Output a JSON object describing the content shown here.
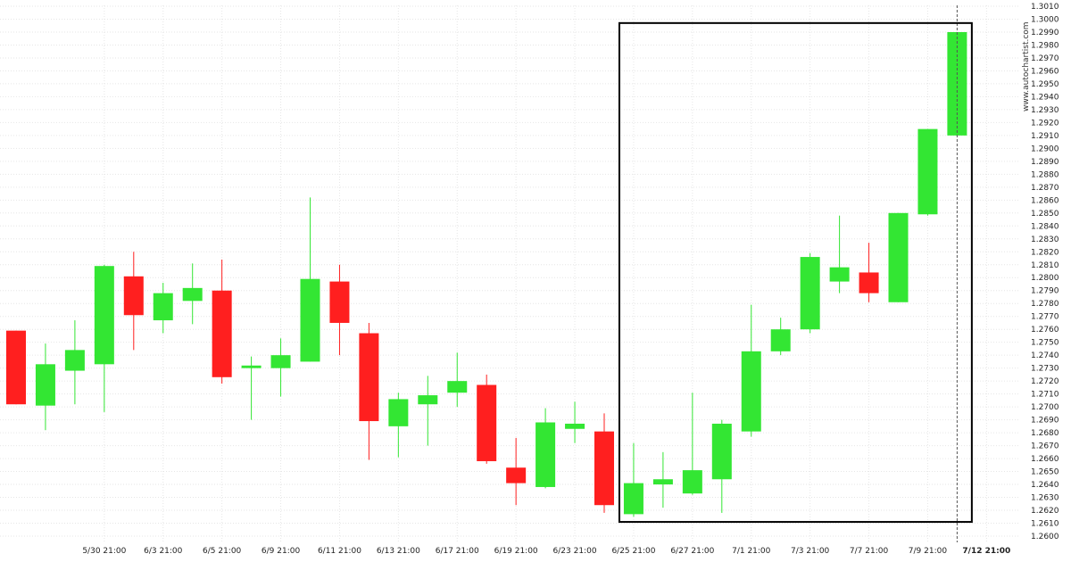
{
  "watermark": "www.autochartist.com",
  "colors": {
    "up": "#33e633",
    "down": "#ff1f1f",
    "grid": "#e6e6e6",
    "box": "#000000"
  },
  "chart_data": {
    "type": "candlestick",
    "ylim": [
      1.2595,
      1.3013
    ],
    "y_ticks": [
      "1.2600",
      "1.2610",
      "1.2620",
      "1.2630",
      "1.2640",
      "1.2650",
      "1.2660",
      "1.2670",
      "1.2680",
      "1.2690",
      "1.2700",
      "1.2710",
      "1.2720",
      "1.2730",
      "1.2740",
      "1.2750",
      "1.2760",
      "1.2770",
      "1.2780",
      "1.2790",
      "1.2800",
      "1.2810",
      "1.2820",
      "1.2830",
      "1.2840",
      "1.2850",
      "1.2860",
      "1.2870",
      "1.2880",
      "1.2890",
      "1.2900",
      "1.2910",
      "1.2920",
      "1.2930",
      "1.2940",
      "1.2950",
      "1.2960",
      "1.2970",
      "1.2980",
      "1.2990",
      "1.3000",
      "1.3010"
    ],
    "x_ticks": [
      {
        "label": "5/30 21:00",
        "index": 3
      },
      {
        "label": "6/3 21:00",
        "index": 5
      },
      {
        "label": "6/5 21:00",
        "index": 7
      },
      {
        "label": "6/9 21:00",
        "index": 9
      },
      {
        "label": "6/11 21:00",
        "index": 11
      },
      {
        "label": "6/13 21:00",
        "index": 13
      },
      {
        "label": "6/17 21:00",
        "index": 15
      },
      {
        "label": "6/19 21:00",
        "index": 17
      },
      {
        "label": "6/23 21:00",
        "index": 19
      },
      {
        "label": "6/25 21:00",
        "index": 21
      },
      {
        "label": "6/27 21:00",
        "index": 23
      },
      {
        "label": "7/1 21:00",
        "index": 25
      },
      {
        "label": "7/3 21:00",
        "index": 27
      },
      {
        "label": "7/7 21:00",
        "index": 29
      },
      {
        "label": "7/9 21:00",
        "index": 31
      },
      {
        "label": "7/12 21:00",
        "index": 33,
        "current": true
      }
    ],
    "candles": [
      {
        "open": 1.2759,
        "high": 1.2759,
        "low": 1.2702,
        "close": 1.2702
      },
      {
        "open": 1.2701,
        "high": 1.2749,
        "low": 1.2682,
        "close": 1.2733
      },
      {
        "open": 1.2728,
        "high": 1.2767,
        "low": 1.2702,
        "close": 1.2744
      },
      {
        "open": 1.2733,
        "high": 1.281,
        "low": 1.2696,
        "close": 1.2809
      },
      {
        "open": 1.2801,
        "high": 1.282,
        "low": 1.2744,
        "close": 1.2771
      },
      {
        "open": 1.2767,
        "high": 1.2796,
        "low": 1.2757,
        "close": 1.2788
      },
      {
        "open": 1.2782,
        "high": 1.2811,
        "low": 1.2764,
        "close": 1.2792
      },
      {
        "open": 1.279,
        "high": 1.2814,
        "low": 1.2718,
        "close": 1.2723
      },
      {
        "open": 1.273,
        "high": 1.2739,
        "low": 1.269,
        "close": 1.2732
      },
      {
        "open": 1.273,
        "high": 1.2753,
        "low": 1.2708,
        "close": 1.274
      },
      {
        "open": 1.2735,
        "high": 1.2862,
        "low": 1.2735,
        "close": 1.2799
      },
      {
        "open": 1.2797,
        "high": 1.281,
        "low": 1.274,
        "close": 1.2765
      },
      {
        "open": 1.2757,
        "high": 1.2765,
        "low": 1.2659,
        "close": 1.2689
      },
      {
        "open": 1.2685,
        "high": 1.2711,
        "low": 1.2661,
        "close": 1.2706
      },
      {
        "open": 1.2702,
        "high": 1.2724,
        "low": 1.267,
        "close": 1.2709
      },
      {
        "open": 1.2711,
        "high": 1.2742,
        "low": 1.27,
        "close": 1.272
      },
      {
        "open": 1.2717,
        "high": 1.2725,
        "low": 1.2656,
        "close": 1.2658
      },
      {
        "open": 1.2653,
        "high": 1.2676,
        "low": 1.2624,
        "close": 1.2641
      },
      {
        "open": 1.2638,
        "high": 1.2699,
        "low": 1.2637,
        "close": 1.2688
      },
      {
        "open": 1.2683,
        "high": 1.2704,
        "low": 1.2672,
        "close": 1.2687
      },
      {
        "open": 1.2681,
        "high": 1.2695,
        "low": 1.2618,
        "close": 1.2624
      },
      {
        "open": 1.2617,
        "high": 1.2672,
        "low": 1.2615,
        "close": 1.2641
      },
      {
        "open": 1.264,
        "high": 1.2665,
        "low": 1.2622,
        "close": 1.2644
      },
      {
        "open": 1.2633,
        "high": 1.2711,
        "low": 1.2632,
        "close": 1.2651
      },
      {
        "open": 1.2644,
        "high": 1.269,
        "low": 1.2618,
        "close": 1.2687
      },
      {
        "open": 1.2681,
        "high": 1.2779,
        "low": 1.2677,
        "close": 1.2743
      },
      {
        "open": 1.2743,
        "high": 1.2769,
        "low": 1.274,
        "close": 1.276
      },
      {
        "open": 1.276,
        "high": 1.2819,
        "low": 1.2757,
        "close": 1.2816
      },
      {
        "open": 1.2797,
        "high": 1.2848,
        "low": 1.2788,
        "close": 1.2808
      },
      {
        "open": 1.2804,
        "high": 1.2827,
        "low": 1.2781,
        "close": 1.2788
      },
      {
        "open": 1.2781,
        "high": 1.285,
        "low": 1.2781,
        "close": 1.285
      },
      {
        "open": 1.2849,
        "high": 1.2915,
        "low": 1.2848,
        "close": 1.2915
      },
      {
        "open": 1.291,
        "high": 1.299,
        "low": 1.291,
        "close": 1.299
      }
    ],
    "pattern_box": {
      "from_index": 21,
      "to_index": 32,
      "top": 1.2997,
      "bottom": 1.2611
    },
    "current_line_index": 32
  }
}
